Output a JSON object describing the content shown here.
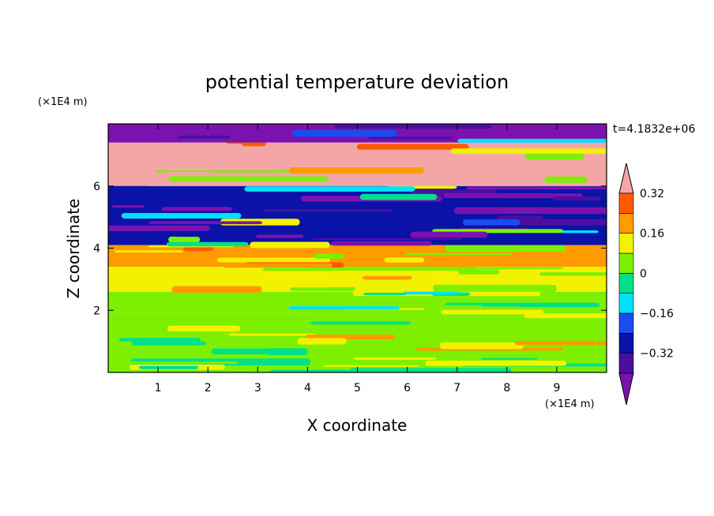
{
  "chart_data": {
    "type": "heatmap",
    "title": "potential temperature deviation",
    "xlabel": "X coordinate",
    "ylabel": "Z coordinate",
    "x_unit": "(×1E4 m)",
    "y_unit": "(×1E4 m)",
    "time_label": "t=4.1832e+06",
    "xlim": [
      0,
      10
    ],
    "ylim": [
      0,
      8
    ],
    "x_ticks": [
      "1",
      "2",
      "3",
      "4",
      "5",
      "6",
      "7",
      "8",
      "9"
    ],
    "y_ticks": [
      "2",
      "4",
      "6"
    ],
    "colorbar": {
      "levels": [
        -0.4,
        -0.32,
        -0.24,
        -0.16,
        -0.08,
        0,
        0.08,
        0.16,
        0.24,
        0.32,
        0.4
      ],
      "labels": [
        "−0.32",
        "−0.16",
        "0",
        "0.16",
        "0.32"
      ],
      "colors": [
        "#7b12b0",
        "#4b0fa0",
        "#0a12a8",
        "#1a4df0",
        "#00e0ff",
        "#00e08a",
        "#7cf000",
        "#f2f200",
        "#ff9a00",
        "#ff5a00",
        "#f4a6a6"
      ],
      "extend": "both"
    },
    "bands": [
      {
        "z": [
          0.0,
          1.9
        ],
        "value": 0.06
      },
      {
        "z": [
          1.9,
          2.6
        ],
        "value": 0.0
      },
      {
        "z": [
          2.6,
          3.4
        ],
        "value": 0.12
      },
      {
        "z": [
          3.4,
          4.1
        ],
        "value": 0.18
      },
      {
        "z": [
          4.1,
          6.0
        ],
        "value": -0.3
      },
      {
        "z": [
          6.0,
          7.4
        ],
        "value": 0.45
      },
      {
        "z": [
          7.4,
          8.0
        ],
        "value": -0.45
      }
    ]
  }
}
